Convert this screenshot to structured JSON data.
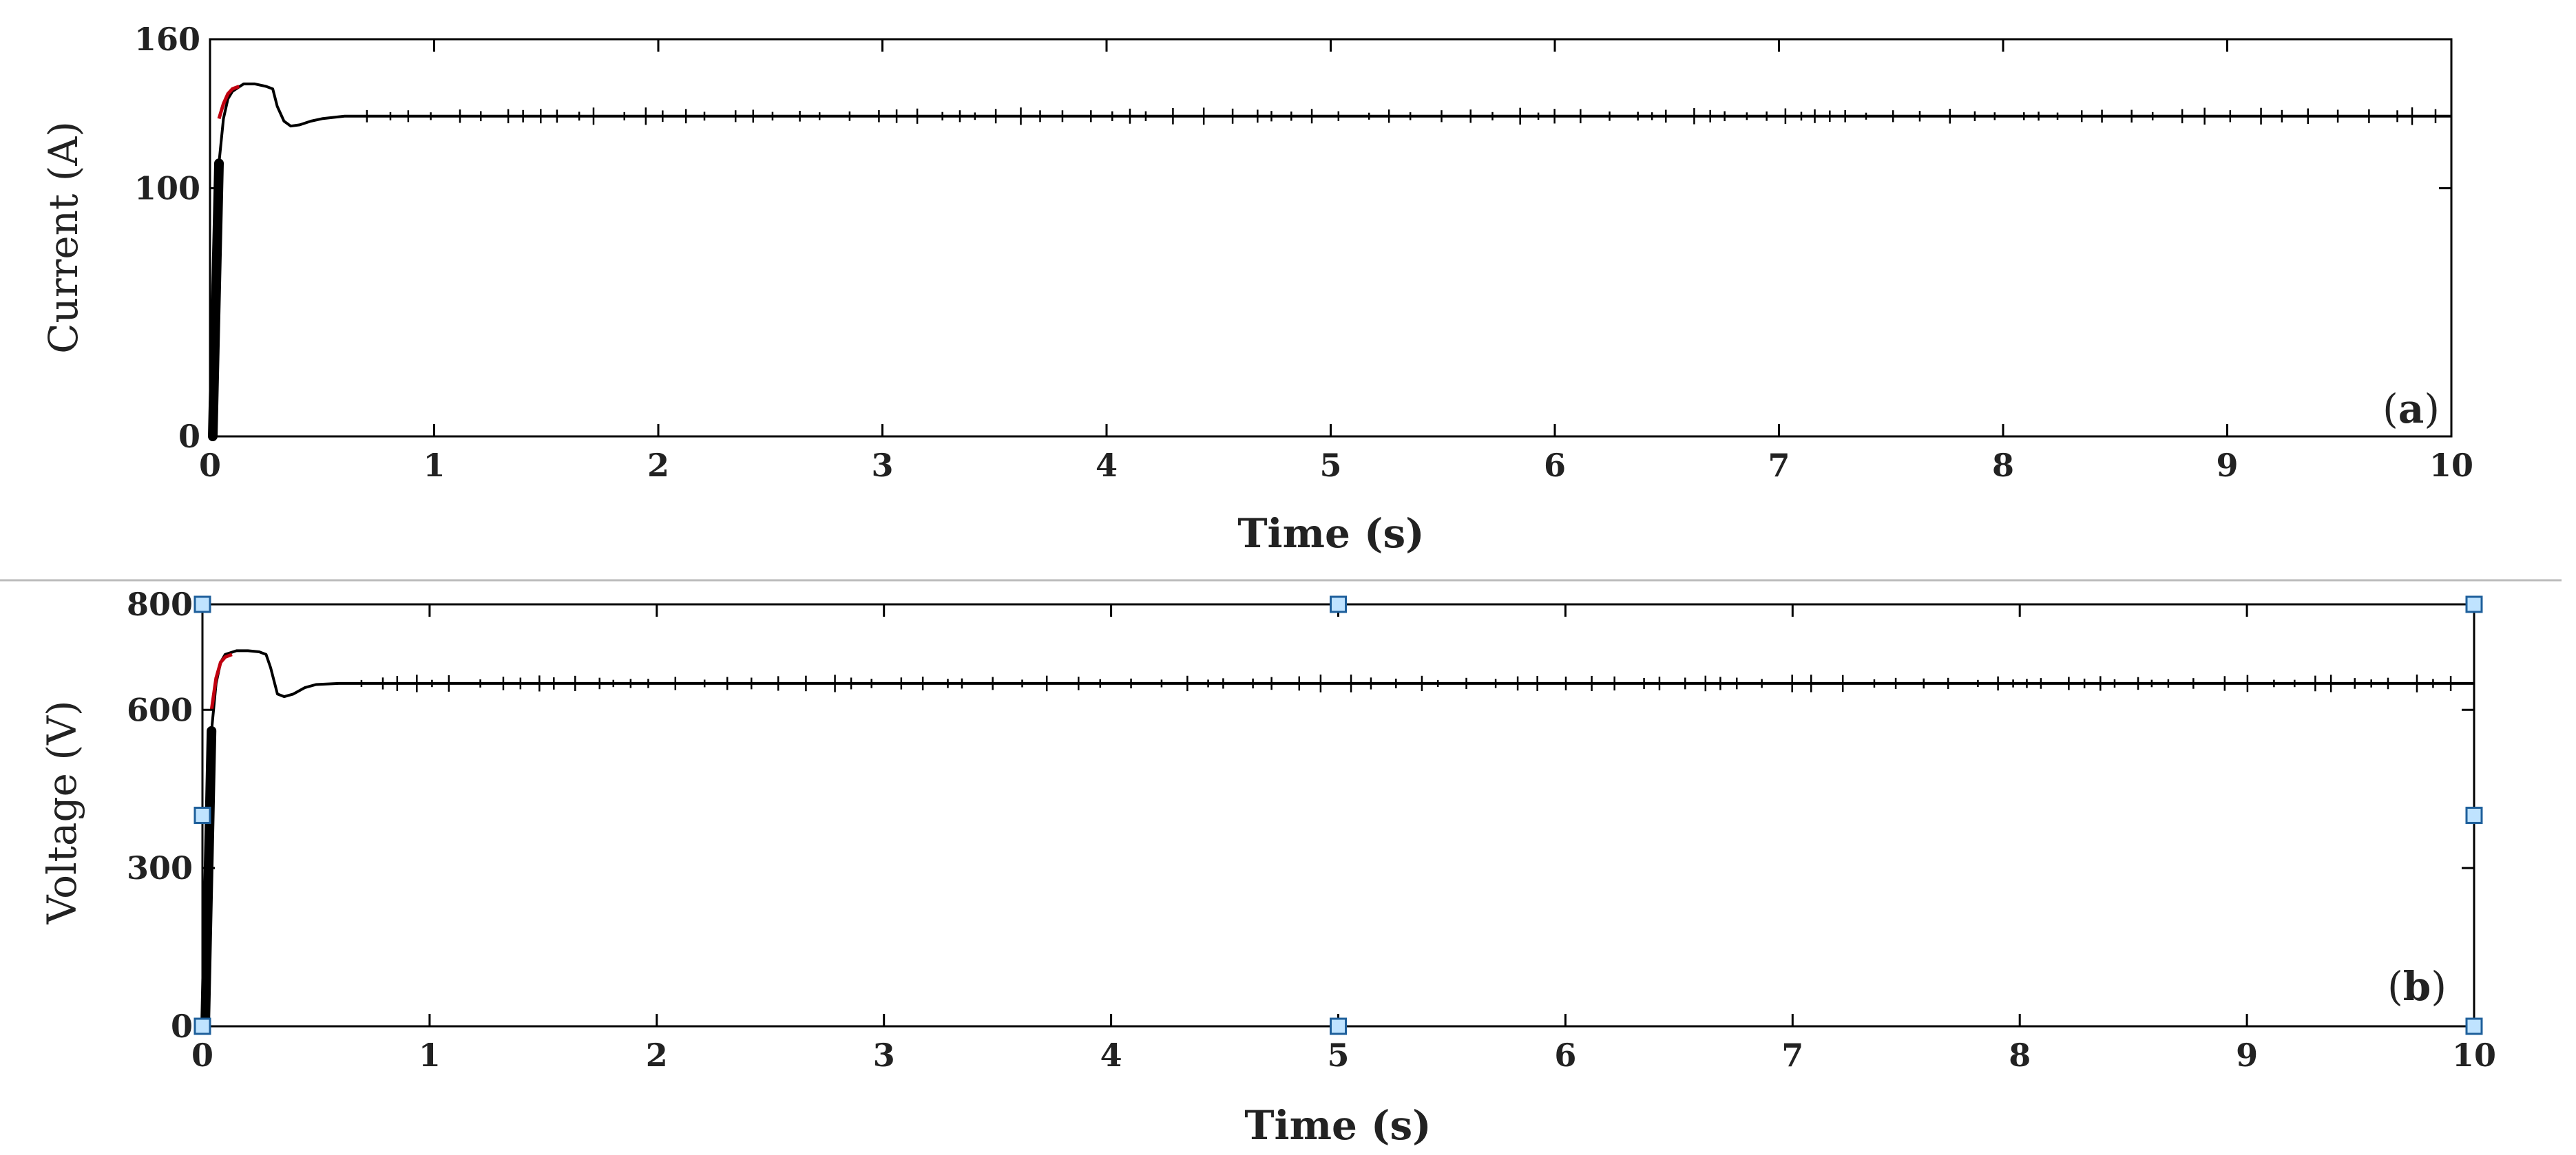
{
  "colors": {
    "trace": "#000000",
    "startup_trace": "#c0000f",
    "handle_fill": "#bfe3ff",
    "handle_stroke": "#1e5f9b",
    "separator": "#bbbbbb"
  },
  "chart_data": [
    {
      "type": "line",
      "panel_label": {
        "open": "(",
        "letter": "a",
        "close": ")"
      },
      "xlabel": "Time (s)",
      "ylabel": "Current (A)",
      "xlim": [
        0,
        10
      ],
      "ylim": [
        0,
        160
      ],
      "xticks": [
        0,
        1,
        2,
        3,
        4,
        5,
        6,
        7,
        8,
        9,
        10
      ],
      "yticks": [
        0,
        100,
        160
      ],
      "grid": false,
      "series": [
        {
          "color": "#000000",
          "x": [
            0,
            0.02,
            0.04,
            0.06,
            0.08,
            0.1,
            0.15,
            0.2,
            0.25,
            0.28,
            0.3,
            0.33,
            0.36,
            0.4,
            0.45,
            0.5,
            0.6,
            0.7,
            0.8,
            1,
            2,
            3,
            4,
            5,
            6,
            7,
            8,
            9,
            10
          ],
          "y": [
            0,
            40,
            110,
            128,
            136,
            139,
            142,
            142,
            141,
            140,
            133,
            127,
            125,
            125.5,
            127,
            128,
            129,
            129,
            129,
            129,
            129,
            129,
            129,
            129,
            129,
            129,
            129,
            129,
            129
          ]
        },
        {
          "color": "#c0000f",
          "x": [
            0.04,
            0.06,
            0.08,
            0.1,
            0.13
          ],
          "y": [
            128,
            134,
            138,
            140,
            141
          ]
        }
      ]
    },
    {
      "type": "line",
      "panel_label": {
        "open": "(",
        "letter": "b",
        "close": ")"
      },
      "xlabel": "Time (s)",
      "ylabel": "Voltage (V)",
      "xlim": [
        0,
        10
      ],
      "ylim": [
        0,
        800
      ],
      "xticks": [
        0,
        1,
        2,
        3,
        4,
        5,
        6,
        7,
        8,
        9,
        10
      ],
      "yticks": [
        0,
        300,
        600,
        800
      ],
      "grid": false,
      "series": [
        {
          "color": "#000000",
          "x": [
            0,
            0.02,
            0.04,
            0.06,
            0.08,
            0.1,
            0.15,
            0.2,
            0.25,
            0.28,
            0.3,
            0.33,
            0.36,
            0.4,
            0.45,
            0.5,
            0.6,
            0.7,
            0.8,
            1,
            2,
            3,
            4,
            5,
            6,
            7,
            8,
            9,
            10
          ],
          "y": [
            0,
            200,
            560,
            650,
            690,
            705,
            712,
            712,
            710,
            705,
            680,
            630,
            625,
            630,
            642,
            648,
            650,
            650,
            650,
            650,
            650,
            650,
            650,
            650,
            650,
            650,
            650,
            650,
            650
          ]
        },
        {
          "color": "#c0000f",
          "x": [
            0.04,
            0.06,
            0.08,
            0.1,
            0.13
          ],
          "y": [
            600,
            660,
            690,
            700,
            705
          ]
        }
      ],
      "selection_handles": [
        {
          "x": 0,
          "y": 0
        },
        {
          "x": 5,
          "y": 0
        },
        {
          "x": 10,
          "y": 0
        },
        {
          "x": 0,
          "y": 400
        },
        {
          "x": 10,
          "y": 400
        },
        {
          "x": 0,
          "y": 800
        },
        {
          "x": 5,
          "y": 800
        },
        {
          "x": 10,
          "y": 800
        }
      ]
    }
  ]
}
